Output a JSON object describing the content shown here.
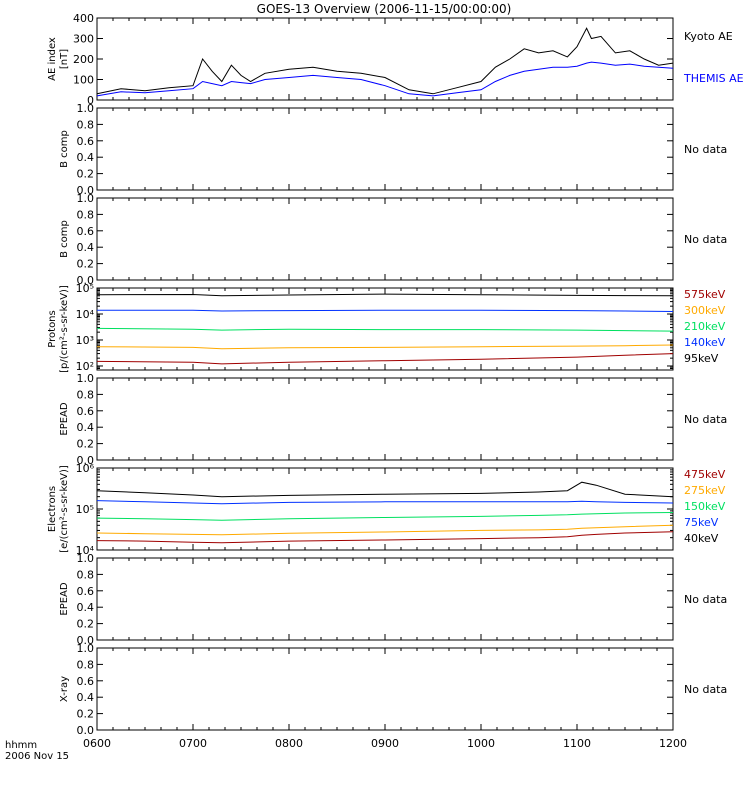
{
  "title": "GOES-13 Overview (2006-11-15/00:00:00)",
  "time_axis": {
    "unit_label": "hhmm",
    "date_label": "2006 Nov 15",
    "ticks": [
      "0600",
      "0700",
      "0800",
      "0900",
      "1000",
      "1100",
      "1200"
    ]
  },
  "chart_data": [
    {
      "type": "line",
      "ylabel": "AE index",
      "yunit": "[nT]",
      "ylim": [
        0,
        400
      ],
      "yticks": [
        "0",
        "100",
        "200",
        "300",
        "400"
      ],
      "x_hours": [
        6.0,
        6.25,
        6.5,
        6.75,
        7.0,
        7.1,
        7.2,
        7.3,
        7.4,
        7.5,
        7.6,
        7.75,
        8.0,
        8.25,
        8.5,
        8.75,
        9.0,
        9.25,
        9.5,
        9.75,
        10.0,
        10.15,
        10.3,
        10.45,
        10.6,
        10.75,
        10.9,
        11.0,
        11.1,
        11.15,
        11.25,
        11.4,
        11.55,
        11.7,
        11.85,
        12.0
      ],
      "series": [
        {
          "name": "Kyoto AE",
          "color": "#000000",
          "values": [
            30,
            55,
            45,
            60,
            70,
            200,
            140,
            90,
            170,
            120,
            90,
            130,
            150,
            160,
            140,
            130,
            110,
            50,
            30,
            60,
            90,
            160,
            200,
            250,
            230,
            240,
            210,
            260,
            350,
            300,
            310,
            230,
            240,
            200,
            170,
            180
          ]
        },
        {
          "name": "THEMIS AE",
          "color": "#0000ff",
          "values": [
            20,
            40,
            35,
            45,
            55,
            90,
            80,
            70,
            90,
            85,
            80,
            100,
            110,
            120,
            110,
            100,
            70,
            30,
            20,
            35,
            50,
            90,
            120,
            140,
            150,
            160,
            160,
            165,
            180,
            185,
            180,
            170,
            175,
            165,
            160,
            155
          ]
        }
      ]
    },
    {
      "type": "line",
      "ylabel": "B comp",
      "ylim": [
        0,
        1
      ],
      "yticks": [
        "0.0",
        "0.2",
        "0.4",
        "0.6",
        "0.8",
        "1.0"
      ],
      "status": "No data"
    },
    {
      "type": "line",
      "ylabel": "B comp",
      "ylim": [
        0,
        1
      ],
      "yticks": [
        "0.0",
        "0.2",
        "0.4",
        "0.6",
        "0.8",
        "1.0"
      ],
      "status": "No data"
    },
    {
      "type": "line",
      "scale": "log",
      "ylabel": "Protons",
      "yunit": "[p/(cm²-s-sr-keV)]",
      "ylim": [
        70,
        100000
      ],
      "yticks": [
        "10²",
        "10³",
        "10⁴",
        "10⁵"
      ],
      "ytick_values": [
        100,
        1000,
        10000,
        100000
      ],
      "x_hours": [
        6.0,
        7.0,
        7.3,
        8.0,
        9.0,
        10.0,
        11.0,
        11.5,
        12.0
      ],
      "series": [
        {
          "name": "575keV",
          "color": "#a00000",
          "values": [
            150,
            140,
            120,
            140,
            160,
            180,
            220,
            260,
            300
          ]
        },
        {
          "name": "300keV",
          "color": "#ffaa00",
          "values": [
            550,
            520,
            460,
            500,
            520,
            550,
            580,
            600,
            640
          ]
        },
        {
          "name": "210keV",
          "color": "#00e060",
          "values": [
            2800,
            2600,
            2400,
            2600,
            2500,
            2500,
            2400,
            2300,
            2200
          ]
        },
        {
          "name": "140keV",
          "color": "#0030ff",
          "values": [
            14000,
            14000,
            13000,
            13500,
            14000,
            14000,
            13500,
            13000,
            12500
          ]
        },
        {
          "name": "95keV",
          "color": "#000000",
          "values": [
            55000,
            56000,
            50000,
            54000,
            58000,
            55000,
            52000,
            51000,
            50000
          ]
        }
      ]
    },
    {
      "type": "line",
      "ylabel": "EPEAD",
      "ylim": [
        0,
        1
      ],
      "yticks": [
        "0.0",
        "0.2",
        "0.4",
        "0.6",
        "0.8",
        "1.0"
      ],
      "status": "No data"
    },
    {
      "type": "line",
      "scale": "log",
      "ylabel": "Electrons",
      "yunit": "[e/(cm²-s-sr-keV)]",
      "ylim": [
        10000,
        1000000
      ],
      "yticks": [
        "10⁴",
        "10⁵",
        "10⁶"
      ],
      "ytick_values": [
        10000,
        100000,
        1000000
      ],
      "x_hours": [
        6.0,
        6.5,
        7.0,
        7.3,
        8.0,
        9.0,
        10.0,
        10.6,
        10.9,
        11.05,
        11.2,
        11.5,
        12.0
      ],
      "series": [
        {
          "name": "475keV",
          "color": "#a00000",
          "values": [
            17000,
            16500,
            15500,
            15000,
            16500,
            17500,
            19000,
            20000,
            21000,
            23000,
            24000,
            26000,
            28000
          ]
        },
        {
          "name": "275keV",
          "color": "#ffaa00",
          "values": [
            26000,
            25000,
            24000,
            23500,
            25500,
            27500,
            30000,
            31000,
            32000,
            34000,
            35000,
            37000,
            40000
          ]
        },
        {
          "name": "150keV",
          "color": "#00e060",
          "values": [
            60000,
            58000,
            55000,
            53000,
            58000,
            62000,
            66000,
            70000,
            72000,
            75000,
            77000,
            80000,
            82000
          ]
        },
        {
          "name": "75keV",
          "color": "#0030ff",
          "values": [
            160000,
            150000,
            140000,
            135000,
            145000,
            150000,
            150000,
            150000,
            150000,
            155000,
            150000,
            145000,
            140000
          ]
        },
        {
          "name": "40keV",
          "color": "#000000",
          "values": [
            280000,
            250000,
            220000,
            200000,
            215000,
            230000,
            240000,
            260000,
            280000,
            450000,
            380000,
            230000,
            200000
          ]
        }
      ]
    },
    {
      "type": "line",
      "ylabel": "EPEAD",
      "ylim": [
        0,
        1
      ],
      "yticks": [
        "0.0",
        "0.2",
        "0.4",
        "0.6",
        "0.8",
        "1.0"
      ],
      "status": "No data"
    },
    {
      "type": "line",
      "ylabel": "X-ray",
      "ylim": [
        0,
        1
      ],
      "yticks": [
        "0.0",
        "0.2",
        "0.4",
        "0.6",
        "0.8",
        "1.0"
      ],
      "status": "No data"
    }
  ]
}
